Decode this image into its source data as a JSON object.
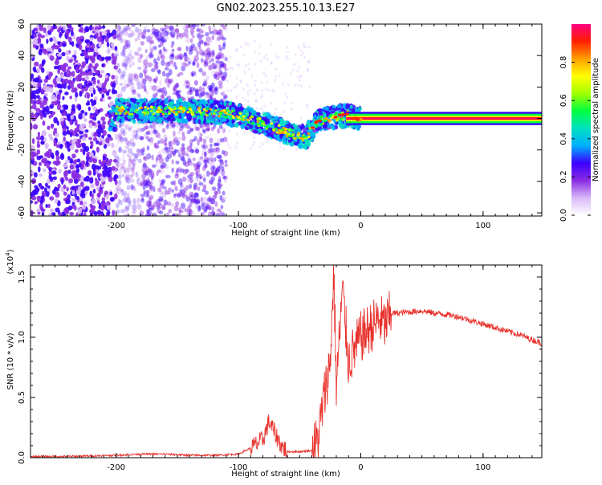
{
  "page_title": "GN02.2023.255.10.13.E27",
  "colors": {
    "axis": "#000000",
    "snr_line": "#e8302a",
    "spectrogram_point": "#7b1cf0"
  },
  "chart_data": [
    {
      "type": "heatmap",
      "xlabel": "Height of straight line (km)",
      "ylabel": "Frequency (Hz)",
      "xlim": [
        -270,
        148
      ],
      "ylim": [
        -62,
        60
      ],
      "x_ticks": [
        -200,
        -100,
        0,
        100
      ],
      "y_ticks": [
        -60,
        -40,
        -20,
        0,
        20,
        40,
        60
      ],
      "colorbar": {
        "label": "Normalized spectral amplitude",
        "range": [
          0,
          1
        ],
        "ticks": [
          0.0,
          0.2,
          0.4,
          0.6,
          0.8
        ],
        "colormap": [
          "#ffffff",
          "#d8b8f8",
          "#8a2be2",
          "#3b00ff",
          "#00b0ff",
          "#00e0c0",
          "#00ff40",
          "#a0ff00",
          "#ffff00",
          "#ffa000",
          "#ff2000",
          "#ff0080"
        ]
      },
      "ridge": {
        "description_points_x": [
          -200,
          -150,
          -120,
          -100,
          -80,
          -60,
          -45,
          -35,
          -20,
          -10,
          0,
          50,
          100,
          148
        ],
        "description_points_y": [
          5,
          5,
          4,
          2,
          -3,
          -9,
          -12,
          -2,
          1,
          2,
          0,
          0,
          0,
          0
        ]
      },
      "grid": false
    },
    {
      "type": "line",
      "xlabel": "Height of straight line (km)",
      "ylabel": "SNR (10 * v/v)",
      "y_multiplier": "(x10^4)",
      "xlim": [
        -270,
        148
      ],
      "ylim": [
        0,
        1.6
      ],
      "x_ticks": [
        -200,
        -100,
        0,
        100
      ],
      "y_ticks": [
        0.0,
        0.5,
        1.0,
        1.5
      ],
      "series": [
        {
          "x": [
            -270,
            -240,
            -200,
            -180,
            -160,
            -140,
            -120,
            -100,
            -90,
            -80,
            -75,
            -70,
            -65,
            -60,
            -50,
            -40,
            -35,
            -30,
            -25,
            -22,
            -20,
            -18,
            -15,
            -10,
            -5,
            0,
            5,
            10,
            15,
            20,
            25,
            30,
            40,
            50,
            60,
            70,
            80,
            90,
            100,
            110,
            120,
            130,
            140,
            148
          ],
          "y": [
            0.01,
            0.01,
            0.02,
            0.03,
            0.03,
            0.02,
            0.02,
            0.03,
            0.08,
            0.15,
            0.3,
            0.2,
            0.1,
            0.05,
            0.05,
            0.06,
            0.15,
            0.5,
            0.8,
            1.55,
            0.6,
            0.9,
            1.4,
            0.8,
            0.9,
            1.0,
            1.05,
            1.1,
            1.15,
            1.1,
            1.2,
            1.2,
            1.21,
            1.22,
            1.2,
            1.19,
            1.17,
            1.14,
            1.11,
            1.08,
            1.05,
            1.02,
            0.98,
            0.95
          ]
        }
      ],
      "grid": false
    }
  ]
}
